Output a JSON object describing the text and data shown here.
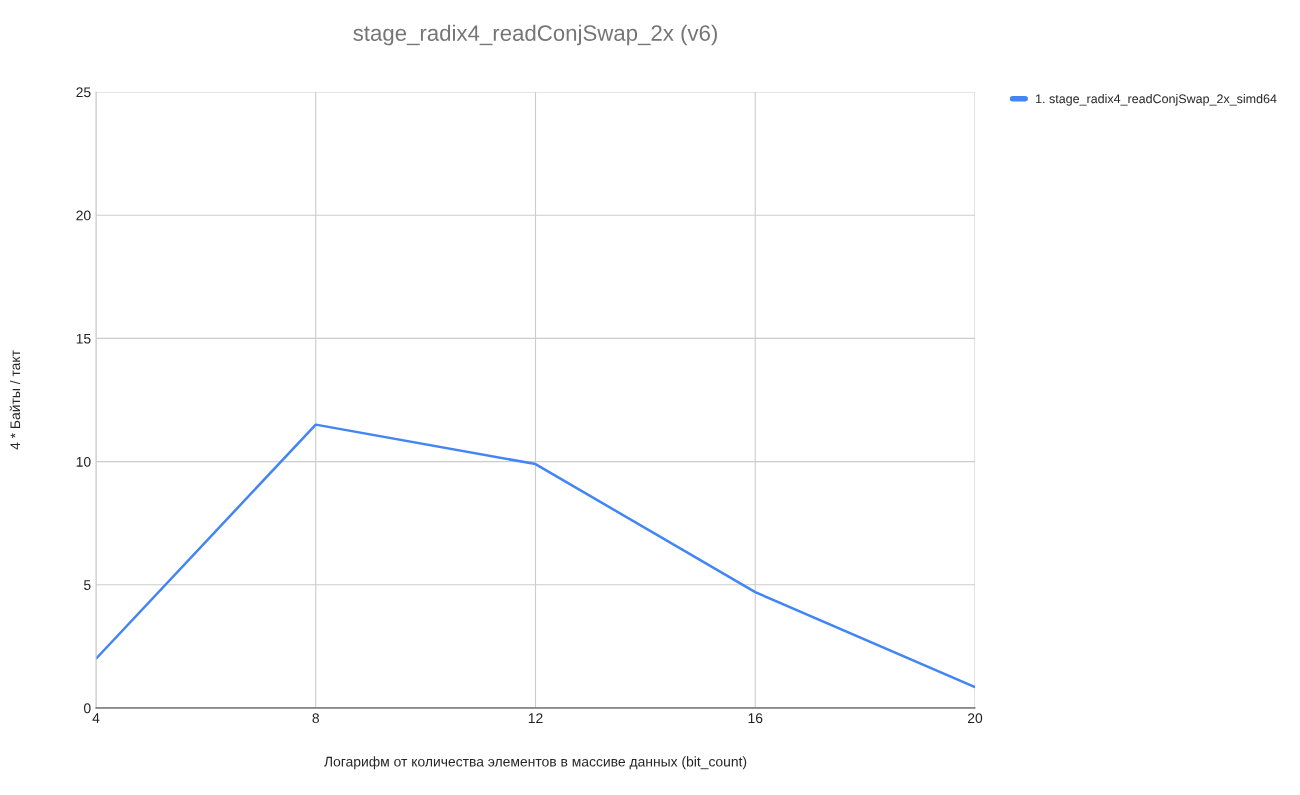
{
  "chart_data": {
    "type": "line",
    "title": "stage_radix4_readConjSwap_2x (v6)",
    "xlabel": "Логарифм от количества элементов в массиве данных (bit_count)",
    "ylabel": "4 * Байты / такт",
    "x": [
      4,
      8,
      12,
      16,
      20
    ],
    "series": [
      {
        "name": "1. stage_radix4_readConjSwap_2x_simd64",
        "color": "#4285f4",
        "values": [
          2.0,
          11.5,
          9.9,
          4.7,
          0.85
        ]
      }
    ],
    "xlim": [
      4,
      20
    ],
    "xticks": [
      4,
      8,
      12,
      16,
      20
    ],
    "ylim": [
      0,
      25
    ],
    "yticks": [
      0,
      5,
      10,
      15,
      20,
      25
    ],
    "grid": true,
    "legend": "top right",
    "marker": "none",
    "line_style": "solid"
  }
}
